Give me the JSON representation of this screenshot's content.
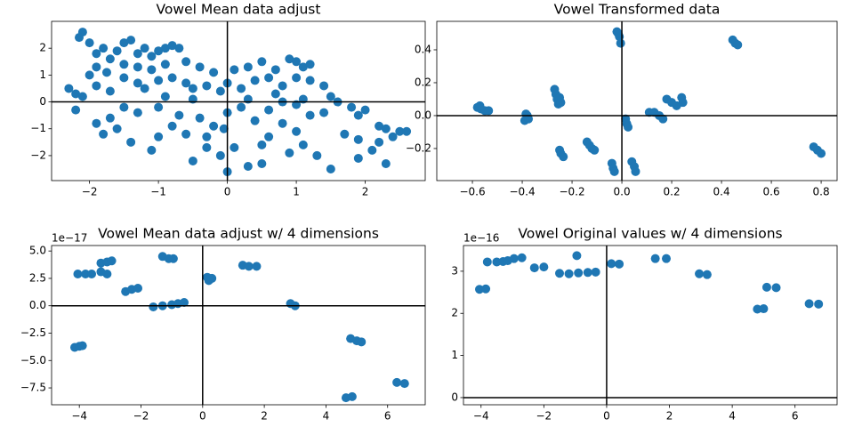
{
  "chart_data": [
    {
      "type": "scatter",
      "title": "Vowel Mean data adjust",
      "color": "#1f77b4",
      "xlim": [
        -2.55,
        2.87
      ],
      "ylim": [
        -2.93,
        3.0
      ],
      "xticks": [
        {
          "value": -2,
          "label": "−2"
        },
        {
          "value": -1,
          "label": "−1"
        },
        0,
        1,
        2
      ],
      "yticks": [
        {
          "value": -2,
          "label": "−2"
        },
        {
          "value": -1,
          "label": "−1"
        },
        0,
        1,
        2
      ],
      "x": [
        -2.1,
        -2.15,
        -2.0,
        -1.9,
        -1.8,
        -1.7,
        -1.6,
        -1.5,
        -1.4,
        -1.3,
        -1.2,
        -1.1,
        -1.0,
        -0.9,
        -0.8,
        -0.7,
        -1.9,
        -2.0,
        -1.75,
        -1.5,
        -1.3,
        -1.1,
        -0.9,
        -0.6,
        -0.4,
        -0.2,
        0.1,
        0.3,
        0.5,
        0.7,
        0.9,
        1.0,
        1.1,
        1.2,
        -2.3,
        -2.2,
        -2.1,
        -1.9,
        -1.7,
        -1.5,
        -1.3,
        -1.2,
        -1.0,
        -0.8,
        -0.6,
        -0.5,
        -0.3,
        -0.1,
        0.0,
        0.2,
        0.4,
        0.6,
        0.8,
        1.0,
        1.2,
        1.4,
        1.5,
        1.6,
        1.8,
        1.9,
        2.0,
        2.2,
        2.3,
        2.5,
        2.6,
        2.4,
        2.3,
        2.1,
        1.9,
        1.7,
        1.5,
        1.3,
        1.1,
        1.0,
        0.8,
        0.6,
        0.5,
        0.3,
        0.1,
        0.0,
        -0.1,
        -0.3,
        -0.5,
        -0.6,
        -0.8,
        -1.0,
        -1.1,
        -1.4,
        -1.6,
        -1.7,
        -1.8,
        -1.9,
        -2.2,
        -1.3,
        -1.0,
        -0.7,
        -0.4,
        -0.2,
        0.0,
        0.2,
        0.4,
        0.6,
        0.8,
        1.0,
        1.2,
        1.4,
        0.3,
        -0.5,
        -0.9,
        0.7,
        1.1,
        -1.5,
        0.9,
        1.9,
        2.2,
        -0.3,
        -0.05,
        0.5
      ],
      "values": [
        2.6,
        2.4,
        2.2,
        1.8,
        2.0,
        1.6,
        1.9,
        2.2,
        2.3,
        1.8,
        2.0,
        1.7,
        1.9,
        2.0,
        2.1,
        2.0,
        1.3,
        1.0,
        1.1,
        1.4,
        1.3,
        1.2,
        1.4,
        1.5,
        1.3,
        1.1,
        1.2,
        1.3,
        1.5,
        1.2,
        1.6,
        1.5,
        1.3,
        1.4,
        0.5,
        0.3,
        0.2,
        0.6,
        0.4,
        0.9,
        0.7,
        0.5,
        0.8,
        0.9,
        0.7,
        0.5,
        0.6,
        0.4,
        0.7,
        0.5,
        0.8,
        0.9,
        0.6,
        0.9,
        0.8,
        0.6,
        0.2,
        0.0,
        -0.2,
        -0.5,
        -0.3,
        -0.9,
        -1.0,
        -1.1,
        -1.1,
        -1.3,
        -2.3,
        -1.8,
        -1.4,
        -1.2,
        -2.5,
        -2.0,
        -1.6,
        -1.1,
        -0.8,
        -1.3,
        -2.3,
        -2.4,
        -1.7,
        -2.6,
        -2.0,
        -1.7,
        -2.2,
        -1.2,
        -0.9,
        -1.3,
        -1.8,
        -1.5,
        -1.0,
        -0.6,
        -1.2,
        -0.8,
        -0.3,
        -0.4,
        -0.2,
        -0.5,
        -0.6,
        -0.9,
        -0.4,
        -0.2,
        -0.7,
        -0.3,
        0.0,
        -0.1,
        -0.5,
        -0.4,
        0.1,
        0.1,
        0.2,
        0.3,
        0.1,
        -0.2,
        -1.9,
        -2.1,
        -1.5,
        -1.3,
        -1.0,
        -1.6
      ]
    },
    {
      "type": "scatter",
      "title": "Vowel Transformed data",
      "color": "#1f77b4",
      "xlim": [
        -0.743,
        0.864
      ],
      "ylim": [
        -0.395,
        0.573
      ],
      "xticks": [
        {
          "value": -0.6,
          "label": "−0.6"
        },
        {
          "value": -0.4,
          "label": "−0.4"
        },
        {
          "value": -0.2,
          "label": "−0.2"
        },
        {
          "value": 0,
          "label": "0.0"
        },
        0.2,
        0.4,
        0.6,
        0.8
      ],
      "yticks": [
        {
          "value": -0.2,
          "label": "−0.2"
        },
        {
          "value": 0,
          "label": "0.0"
        },
        0.2,
        0.4
      ],
      "x": [
        -0.58,
        -0.565,
        -0.55,
        -0.535,
        -0.57,
        -0.39,
        -0.38,
        -0.375,
        -0.385,
        -0.27,
        -0.265,
        -0.26,
        -0.255,
        -0.25,
        -0.245,
        -0.25,
        -0.245,
        -0.235,
        -0.14,
        -0.13,
        -0.12,
        -0.11,
        -0.04,
        -0.035,
        -0.03,
        -0.02,
        -0.01,
        -0.005,
        -0.015,
        0.015,
        0.02,
        0.025,
        0.04,
        0.05,
        0.055,
        0.11,
        0.13,
        0.15,
        0.165,
        0.18,
        0.2,
        0.22,
        0.24,
        0.245,
        0.445,
        0.455,
        0.465,
        0.77,
        0.785,
        0.8
      ],
      "values": [
        0.05,
        0.04,
        0.03,
        0.03,
        0.06,
        -0.03,
        0.0,
        -0.02,
        0.01,
        0.16,
        0.13,
        0.1,
        0.07,
        0.11,
        0.08,
        -0.21,
        -0.23,
        -0.25,
        -0.16,
        -0.18,
        -0.2,
        -0.21,
        -0.29,
        -0.32,
        -0.34,
        0.51,
        0.48,
        0.44,
        0.5,
        -0.02,
        -0.05,
        -0.07,
        -0.28,
        -0.31,
        -0.34,
        0.02,
        0.02,
        0.0,
        -0.02,
        0.1,
        0.08,
        0.06,
        0.11,
        0.08,
        0.46,
        0.44,
        0.43,
        -0.19,
        -0.21,
        -0.23
      ]
    },
    {
      "type": "scatter",
      "title": "Vowel Mean data adjust w/ 4 dimensions",
      "offset_text": "1e−17",
      "color": "#1f77b4",
      "xlim": [
        -4.9,
        7.22
      ],
      "ylim": [
        -9.04,
        5.5
      ],
      "xticks": [
        {
          "value": -4,
          "label": "−4"
        },
        {
          "value": -2,
          "label": "−2"
        },
        0,
        2,
        4,
        6
      ],
      "yticks": [
        {
          "value": -7.5,
          "label": "−7.5"
        },
        {
          "value": -5,
          "label": "−5.0"
        },
        {
          "value": -2.5,
          "label": "−2.5"
        },
        {
          "value": 0,
          "label": "0.0"
        },
        2.5,
        {
          "value": 5,
          "label": "5.0"
        }
      ],
      "x": [
        -4.15,
        -4.0,
        -3.9,
        -4.05,
        -3.8,
        -3.6,
        -3.3,
        -3.1,
        -3.3,
        -3.1,
        -2.95,
        -2.5,
        -2.3,
        -2.1,
        -1.3,
        -1.1,
        -0.95,
        -1.6,
        -1.3,
        -1.0,
        -0.8,
        -0.6,
        0.15,
        0.2,
        0.3,
        1.3,
        1.5,
        1.75,
        2.85,
        3.0,
        4.8,
        5.0,
        5.15,
        4.65,
        4.85,
        6.3,
        6.55
      ],
      "values": [
        -3.8,
        -3.7,
        -3.65,
        2.9,
        2.9,
        2.9,
        3.1,
        2.9,
        3.9,
        4.0,
        4.1,
        1.3,
        1.5,
        1.6,
        4.5,
        4.3,
        4.3,
        -0.1,
        0.0,
        0.1,
        0.2,
        0.3,
        2.6,
        2.3,
        2.5,
        3.7,
        3.6,
        3.6,
        0.2,
        0.0,
        -3.0,
        -3.2,
        -3.3,
        -8.4,
        -8.3,
        -7.0,
        -7.1
      ]
    },
    {
      "type": "scatter",
      "title": "Vowel Original values w/ 4 dimensions",
      "offset_text": "1e−16",
      "color": "#1f77b4",
      "xlim": [
        -4.56,
        7.34
      ],
      "ylim": [
        -0.17,
        3.61
      ],
      "xticks": [
        {
          "value": -4,
          "label": "−4"
        },
        {
          "value": -2,
          "label": "−2"
        },
        0,
        2,
        4,
        6
      ],
      "yticks": [
        0,
        1,
        2,
        3
      ],
      "x": [
        -4.05,
        -3.85,
        -3.8,
        -3.5,
        -3.3,
        -3.15,
        -2.95,
        -2.7,
        -2.3,
        -2.0,
        -1.5,
        -1.2,
        -0.95,
        -0.9,
        -0.6,
        -0.35,
        0.15,
        0.4,
        1.55,
        1.9,
        2.95,
        3.2,
        4.8,
        5.0,
        5.1,
        5.4,
        6.45,
        6.75
      ],
      "values": [
        2.57,
        2.58,
        3.22,
        3.22,
        3.23,
        3.25,
        3.3,
        3.32,
        3.08,
        3.1,
        2.95,
        2.94,
        3.37,
        2.96,
        2.97,
        2.98,
        3.18,
        3.17,
        3.3,
        3.3,
        2.94,
        2.92,
        2.1,
        2.11,
        2.62,
        2.61,
        2.23,
        2.22
      ]
    }
  ]
}
